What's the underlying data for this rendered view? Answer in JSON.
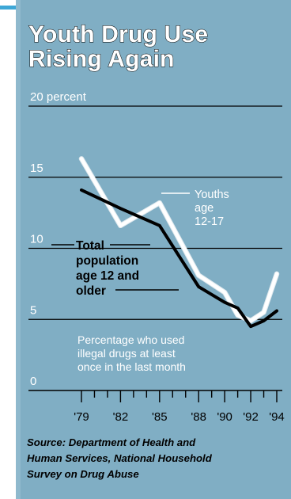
{
  "colors": {
    "panel": "#80aec4",
    "accent_line": "#3ea7d6",
    "youths_line": "#ffffff",
    "total_line": "#000000",
    "gridline": "#000000",
    "label_white": "#ffffff"
  },
  "chart_data": {
    "type": "line",
    "title": "Youth Drug Use Rising Again",
    "title_lines": [
      "Youth Drug Use",
      "Rising Again"
    ],
    "ylabel": "20 percent",
    "ylim": [
      0,
      20
    ],
    "ytick_labels": [
      "0",
      "5",
      "10",
      "15",
      "20 percent"
    ],
    "yticks": [
      0,
      5,
      10,
      15,
      20
    ],
    "xtick_labels": [
      "'79",
      "'82",
      "'85",
      "'88",
      "'90",
      "'92",
      "'94"
    ],
    "xticks": [
      1979,
      1982,
      1985,
      1988,
      1990,
      1992,
      1994
    ],
    "xlim": [
      1979,
      1994
    ],
    "grid": true,
    "annotation_lines": [
      "Percentage who used",
      "illegal drugs at least",
      "once in the last month"
    ],
    "series": [
      {
        "name": "Youths age 12-17",
        "label_lines": [
          "Youths",
          "age",
          "12-17"
        ],
        "color": "#ffffff",
        "x": [
          1979,
          1982,
          1985,
          1988,
          1990,
          1991,
          1992,
          1993,
          1994
        ],
        "values": [
          16.3,
          11.6,
          13.2,
          8.1,
          6.9,
          5.3,
          4.9,
          5.5,
          8.2
        ]
      },
      {
        "name": "Total population age 12 and older",
        "label_lines": [
          "Total",
          "population",
          "age 12 and",
          "older"
        ],
        "color": "#000000",
        "x": [
          1979,
          1982,
          1985,
          1988,
          1990,
          1991,
          1992,
          1993,
          1994
        ],
        "values": [
          14.1,
          12.8,
          11.6,
          7.3,
          6.2,
          5.8,
          4.5,
          4.9,
          5.6
        ]
      }
    ]
  },
  "source_lines": [
    "Source: Department of Health and",
    "Human Services, National Household",
    "Survey on Drug Abuse"
  ]
}
